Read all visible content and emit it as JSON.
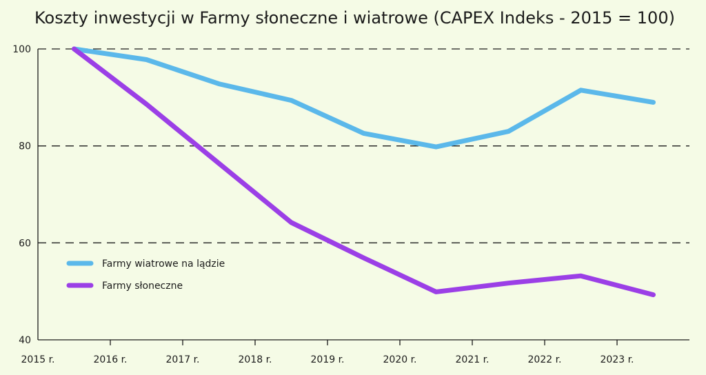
{
  "chart_data": {
    "type": "line",
    "title": "Koszty inwestycji w Farmy słoneczne i wiatrowe (CAPEX Indeks - 2015 = 100)",
    "xlabel": "",
    "ylabel": "",
    "x_ticks": [
      "2015 r.",
      "2016 r.",
      "2017 r.",
      "2018 r.",
      "2019 r.",
      "2020 r.",
      "2021 r.",
      "2022 r.",
      "2023 r."
    ],
    "x": [
      2015.5,
      2016.5,
      2017.5,
      2018.5,
      2019.5,
      2020.5,
      2021.5,
      2022.5,
      2023.5
    ],
    "xlim": [
      2015,
      2024
    ],
    "ylim": [
      40,
      100
    ],
    "y_ticks": [
      40,
      60,
      80,
      100
    ],
    "grid": "horizontal dashed",
    "legend_position": "bottom-left",
    "series": [
      {
        "name": "Farmy wiatrowe na lądzie",
        "color": "#5bb8ea",
        "values": [
          100,
          97.8,
          92.8,
          89.4,
          82.6,
          79.8,
          83.0,
          91.5,
          89.0
        ]
      },
      {
        "name": "Farmy słoneczne",
        "color": "#9b3fe6",
        "values": [
          100,
          88.6,
          76.4,
          64.2,
          56.9,
          49.9,
          51.7,
          53.2,
          49.3
        ]
      }
    ]
  }
}
